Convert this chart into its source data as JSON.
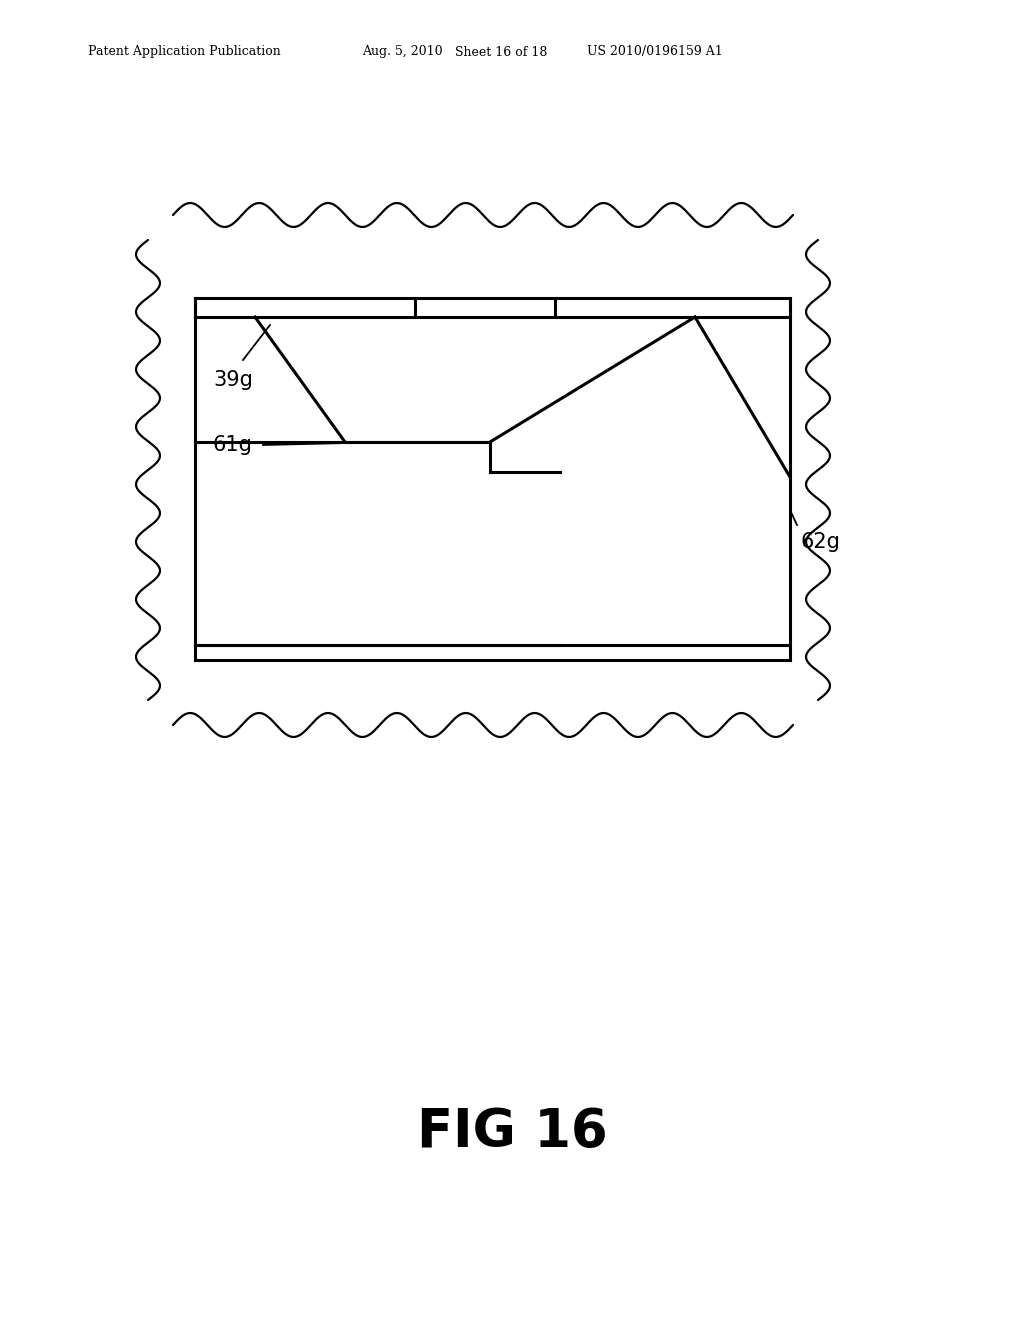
{
  "bg_color": "#ffffff",
  "line_color": "#000000",
  "header_text": "Patent Application Publication",
  "header_date": "Aug. 5, 2010",
  "header_sheet": "Sheet 16 of 18",
  "header_patent": "US 2010/0196159 A1",
  "fig_label": "FIG 16",
  "label_39g": "39g",
  "label_61g": "61g",
  "label_62g": "62g"
}
